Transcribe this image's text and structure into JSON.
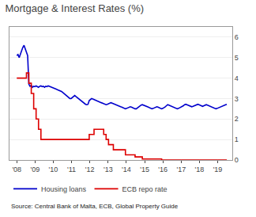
{
  "chart_data": {
    "type": "line",
    "title": "Mortgage & Interest Rates (%)",
    "annotations": [
      "Source: Central Bank of Malta, ECB, Global Property Guide"
    ],
    "x": [
      2008,
      2008.0661,
      2008.1322,
      2008.1983,
      2008.2644,
      2008.3305,
      2008.3966,
      2008.4626,
      2008.5287,
      2008.5948,
      2008.6609,
      2008.727,
      2008.7931,
      2008.8592,
      2008.9253,
      2008.9914,
      2009.0575,
      2009.1236,
      2009.1897,
      2009.2557,
      2009.3218,
      2009.3879,
      2009.454,
      2009.5201,
      2009.5862,
      2009.6523,
      2009.7184,
      2009.7845,
      2009.8506,
      2009.9167,
      2009.9828,
      2010.0489,
      2010.1149,
      2010.181,
      2010.2471,
      2010.3132,
      2010.3793,
      2010.4454,
      2010.5115,
      2010.5776,
      2010.6437,
      2010.7098,
      2010.7759,
      2010.842,
      2010.908,
      2010.9741,
      2011.0402,
      2011.1063,
      2011.1724,
      2011.2385,
      2011.3046,
      2011.3707,
      2011.4368,
      2011.5029,
      2011.569,
      2011.6351,
      2011.7011,
      2011.7672,
      2011.8333,
      2011.8994,
      2011.9655,
      2012.0316,
      2012.0977,
      2012.1638,
      2012.2299,
      2012.296,
      2012.3621,
      2012.4282,
      2012.4943,
      2012.5603,
      2012.6264,
      2012.6925,
      2012.7586,
      2012.8247,
      2012.8908,
      2012.9569,
      2013.023,
      2013.0891,
      2013.1552,
      2013.2213,
      2013.2874,
      2013.3534,
      2013.4195,
      2013.4856,
      2013.5517,
      2013.6178,
      2013.6839,
      2013.75,
      2013.8161,
      2013.8822,
      2013.9483,
      2014.0144,
      2014.0805,
      2014.1466,
      2014.2126,
      2014.2787,
      2014.3448,
      2014.4109,
      2014.477,
      2014.5431,
      2014.6092,
      2014.6753,
      2014.7414,
      2014.8075,
      2014.8736,
      2014.9397,
      2015.0057,
      2015.0718,
      2015.1379,
      2015.204,
      2015.2701,
      2015.3362,
      2015.4023,
      2015.4684,
      2015.5345,
      2015.6006,
      2015.6667,
      2015.7328,
      2015.7989,
      2015.8649,
      2015.931,
      2015.9971,
      2016.0632,
      2016.1293,
      2016.1954,
      2016.2615,
      2016.3276,
      2016.3937,
      2016.4598,
      2016.5259,
      2016.592,
      2016.658,
      2016.7241,
      2016.7902,
      2016.8563,
      2016.9224,
      2016.9885,
      2017.0546,
      2017.1207,
      2017.1868,
      2017.2529,
      2017.319,
      2017.3851,
      2017.4511,
      2017.5172,
      2017.5833,
      2017.6494,
      2017.7155,
      2017.7816,
      2017.8477,
      2017.9138,
      2017.9799,
      2018.046,
      2018.1121,
      2018.1782,
      2018.2443,
      2018.3103,
      2018.3764,
      2018.4425,
      2018.5086,
      2018.5747,
      2018.6408,
      2018.7069,
      2018.773,
      2018.8391,
      2018.9052,
      2018.9713,
      2019.0374,
      2019.1034,
      2019.1695,
      2019.2356,
      2019.3017,
      2019.3678,
      2019.4339,
      2019.5
    ],
    "series": [
      {
        "name": "Housing loans",
        "color": "#0000cc",
        "line_style": "solid",
        "values": [
          5.1,
          5.15,
          5.0,
          5.2,
          5.35,
          5.5,
          5.6,
          5.45,
          5.3,
          5.1,
          3.7,
          3.6,
          3.65,
          3.55,
          3.6,
          3.58,
          3.62,
          3.58,
          3.55,
          3.6,
          3.62,
          3.58,
          3.6,
          3.55,
          3.6,
          3.58,
          3.62,
          3.6,
          3.58,
          3.55,
          3.52,
          3.5,
          3.48,
          3.45,
          3.42,
          3.4,
          3.38,
          3.35,
          3.3,
          3.25,
          3.2,
          3.15,
          3.1,
          3.05,
          3.0,
          3.0,
          3.05,
          3.1,
          3.15,
          3.1,
          3.05,
          3.0,
          2.95,
          2.9,
          2.85,
          2.8,
          2.75,
          2.72,
          2.7,
          2.72,
          2.9,
          2.95,
          3.0,
          2.98,
          2.95,
          2.92,
          2.9,
          2.88,
          2.85,
          2.82,
          2.8,
          2.78,
          2.75,
          2.72,
          2.7,
          2.72,
          2.75,
          2.78,
          2.8,
          2.78,
          2.75,
          2.72,
          2.7,
          2.68,
          2.65,
          2.62,
          2.6,
          2.58,
          2.55,
          2.52,
          2.5,
          2.52,
          2.55,
          2.58,
          2.6,
          2.58,
          2.55,
          2.52,
          2.5,
          2.5,
          2.55,
          2.6,
          2.65,
          2.68,
          2.7,
          2.68,
          2.65,
          2.62,
          2.6,
          2.58,
          2.55,
          2.52,
          2.5,
          2.52,
          2.55,
          2.58,
          2.6,
          2.58,
          2.55,
          2.52,
          2.5,
          2.52,
          2.55,
          2.6,
          2.65,
          2.7,
          2.68,
          2.65,
          2.62,
          2.6,
          2.58,
          2.55,
          2.52,
          2.5,
          2.52,
          2.55,
          2.58,
          2.6,
          2.65,
          2.7,
          2.72,
          2.7,
          2.68,
          2.65,
          2.62,
          2.6,
          2.62,
          2.65,
          2.68,
          2.7,
          2.72,
          2.7,
          2.68,
          2.65,
          2.62,
          2.65,
          2.68,
          2.7,
          2.68,
          2.65,
          2.62,
          2.6,
          2.58,
          2.55,
          2.52,
          2.5,
          2.52,
          2.55,
          2.58,
          2.6,
          2.62,
          2.65,
          2.68,
          2.7,
          2.72
        ]
      },
      {
        "name": "ECB repo rate",
        "color": "#dd0000",
        "line_style": "steps",
        "values": [
          4.0,
          4.0,
          4.0,
          4.0,
          4.0,
          4.0,
          4.0,
          4.0,
          4.25,
          4.25,
          3.75,
          3.75,
          3.25,
          3.25,
          2.5,
          2.5,
          2.0,
          2.0,
          1.5,
          1.5,
          1.0,
          1.0,
          1.0,
          1.0,
          1.0,
          1.0,
          1.0,
          1.0,
          1.0,
          1.0,
          1.0,
          1.0,
          1.0,
          1.0,
          1.0,
          1.0,
          1.0,
          1.0,
          1.0,
          1.0,
          1.0,
          1.0,
          1.0,
          1.0,
          1.0,
          1.0,
          1.0,
          1.0,
          1.0,
          1.0,
          1.0,
          1.0,
          1.0,
          1.0,
          1.0,
          1.0,
          1.0,
          1.0,
          1.0,
          1.0,
          1.25,
          1.25,
          1.25,
          1.25,
          1.5,
          1.5,
          1.5,
          1.5,
          1.5,
          1.5,
          1.5,
          1.5,
          1.25,
          1.25,
          1.0,
          1.0,
          0.75,
          0.75,
          0.75,
          0.75,
          0.5,
          0.5,
          0.5,
          0.5,
          0.5,
          0.5,
          0.5,
          0.5,
          0.5,
          0.5,
          0.25,
          0.25,
          0.25,
          0.25,
          0.25,
          0.25,
          0.25,
          0.25,
          0.15,
          0.15,
          0.15,
          0.15,
          0.15,
          0.15,
          0.05,
          0.05,
          0.05,
          0.05,
          0.05,
          0.05,
          0.05,
          0.05,
          0.05,
          0.05,
          0.05,
          0.05,
          0.05,
          0.05,
          0.05,
          0.05,
          0.0,
          0.0,
          0.0,
          0.0,
          0.0,
          0.0,
          0.0,
          0.0,
          0.0,
          0.0,
          0.0,
          0.0,
          0.0,
          0.0,
          0.0,
          0.0,
          0.0,
          0.0,
          0.0,
          0.0,
          0.0,
          0.0,
          0.0,
          0.0,
          0.0,
          0.0,
          0.0,
          0.0,
          0.0,
          0.0,
          0.0,
          0.0,
          0.0,
          0.0,
          0.0,
          0.0,
          0.0,
          0.0,
          0.0,
          0.0,
          0.0,
          0.0,
          0.0,
          0.0,
          0.0,
          0.0,
          0.0,
          0.0,
          0.0,
          0.0,
          0.0,
          0.0,
          0.0,
          0.0,
          0.0
        ]
      }
    ],
    "xlim": [
      2007.6,
      2019.8
    ],
    "xticks": [
      {
        "value": 2008,
        "label": "'08"
      },
      {
        "value": 2009,
        "label": "'09"
      },
      {
        "value": 2010,
        "label": "'10"
      },
      {
        "value": 2011,
        "label": "'11"
      },
      {
        "value": 2012,
        "label": "'12"
      },
      {
        "value": 2013,
        "label": "'13"
      },
      {
        "value": 2014,
        "label": "'14"
      },
      {
        "value": 2015,
        "label": "'15"
      },
      {
        "value": 2016,
        "label": "'16"
      },
      {
        "value": 2017,
        "label": "'17"
      },
      {
        "value": 2018,
        "label": "'18"
      },
      {
        "value": 2019,
        "label": "'19"
      }
    ],
    "ylim": [
      0,
      6.5
    ],
    "yticks": [
      0,
      1,
      2,
      3,
      4,
      5,
      6
    ],
    "grid": true,
    "legend": "bottom"
  }
}
